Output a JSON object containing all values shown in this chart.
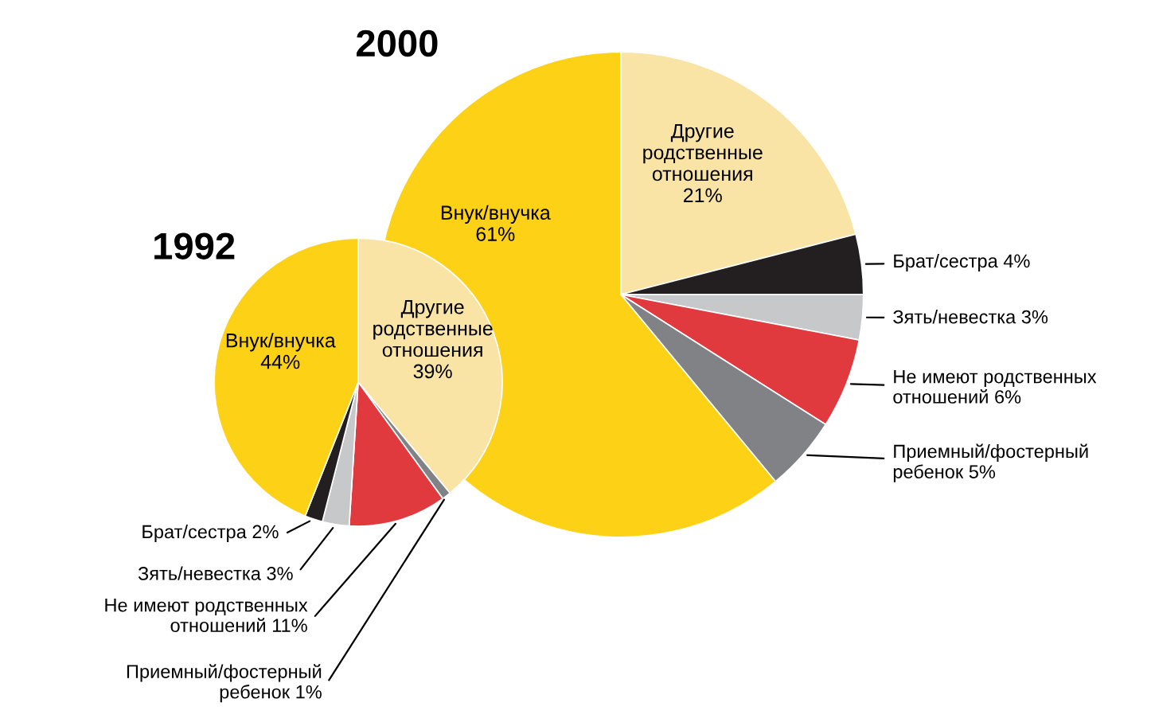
{
  "chart_data": [
    {
      "type": "pie",
      "title": "1992",
      "categories": [
        "Другие\nродственные\nотношения",
        "Приемный/фостерный\nребенок",
        "Не имеют родственных\nотношений",
        "Зять/невестка",
        "Брат/сестра",
        "Внук/внучка"
      ],
      "values": [
        39,
        1,
        11,
        3,
        2,
        44
      ],
      "colors": [
        "#f9e3a5",
        "#808285",
        "#e03a3e",
        "#c7c8ca",
        "#231f20",
        "#fcd116"
      ],
      "value_labels": [
        "39%",
        "1%",
        "11%",
        "3%",
        "2%",
        "44%"
      ]
    },
    {
      "type": "pie",
      "title": "2000",
      "categories": [
        "Другие\nродственные\nотношения",
        "Брат/сестра",
        "Зять/невестка",
        "Не имеют родственных\nотношений",
        "Приемный/фостерный\nребенок",
        "Внук/внучка"
      ],
      "values": [
        21,
        4,
        3,
        6,
        5,
        61
      ],
      "colors": [
        "#f9e3a5",
        "#231f20",
        "#c7c8ca",
        "#e03a3e",
        "#808285",
        "#fcd116"
      ],
      "value_labels": [
        "21%",
        "4%",
        "3%",
        "6%",
        "5%",
        "61%"
      ]
    }
  ]
}
